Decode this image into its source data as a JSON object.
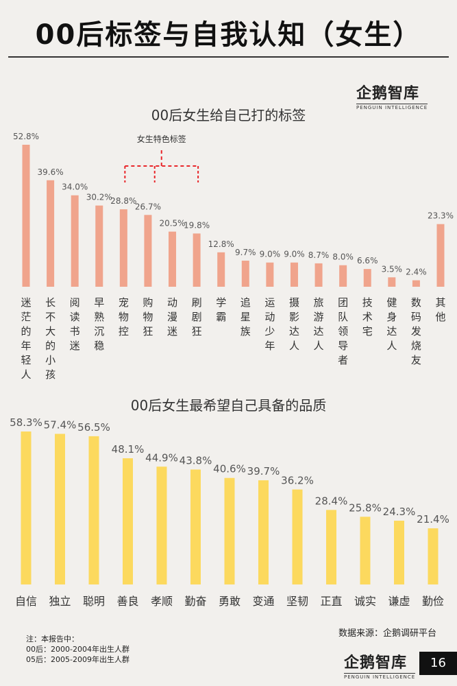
{
  "page": {
    "title": "00后标签与自我认知（女生）",
    "logo_text": "企鹅智库",
    "logo_sub": "PENGUIN INTELLIGENCE",
    "data_source": "数据来源：企鹅调研平台",
    "page_number": "16",
    "notes": [
      "注：本报告中：",
      "00后：2000-2004年出生人群",
      "05后：2005-2009年出生人群"
    ]
  },
  "colors": {
    "chart1_bar": "#f0a48c",
    "chart2_bar": "#fcd95e",
    "annotation": "#e8262a"
  },
  "chart_data": [
    {
      "type": "bar",
      "title": "00后女生给自己打的标签",
      "annotation": "女生特色标签",
      "categories": [
        "迷茫的年轻人",
        "长不大的小孩",
        "阅读书迷",
        "早熟沉稳",
        "宠物控",
        "购物狂",
        "动漫迷",
        "刷剧狂",
        "学霸",
        "追星族",
        "运动少年",
        "摄影达人",
        "旅游达人",
        "团队领导者",
        "技术宅",
        "健身达人",
        "数码发烧友",
        "其他"
      ],
      "values": [
        52.8,
        39.6,
        34.0,
        30.2,
        28.8,
        26.7,
        20.5,
        19.8,
        12.8,
        9.7,
        9.0,
        9.0,
        8.7,
        8.0,
        6.6,
        3.5,
        2.4,
        23.3
      ],
      "value_labels": [
        "52.8%",
        "39.6%",
        "34.0%",
        "30.2%",
        "28.8%",
        "26.7%",
        "20.5%",
        "19.8%",
        "12.8%",
        "9.7%",
        "9.0%",
        "9.0%",
        "8.7%",
        "8.0%",
        "6.6%",
        "3.5%",
        "2.4%",
        "23.3%"
      ],
      "ylim": [
        0,
        60
      ],
      "grid": false
    },
    {
      "type": "bar",
      "title": "00后女生最希望自己具备的品质",
      "categories": [
        "自信",
        "独立",
        "聪明",
        "善良",
        "孝顺",
        "勤奋",
        "勇敢",
        "变通",
        "坚韧",
        "正直",
        "诚实",
        "谦虚",
        "勤俭"
      ],
      "values": [
        58.3,
        57.4,
        56.5,
        48.1,
        44.9,
        43.8,
        40.6,
        39.7,
        36.2,
        28.4,
        25.8,
        24.3,
        21.4
      ],
      "value_labels": [
        "58.3%",
        "57.4%",
        "56.5%",
        "48.1%",
        "44.9%",
        "43.8%",
        "40.6%",
        "39.7%",
        "36.2%",
        "28.4%",
        "25.8%",
        "24.3%",
        "21.4%"
      ],
      "ylim": [
        0,
        60
      ],
      "grid": false
    }
  ]
}
